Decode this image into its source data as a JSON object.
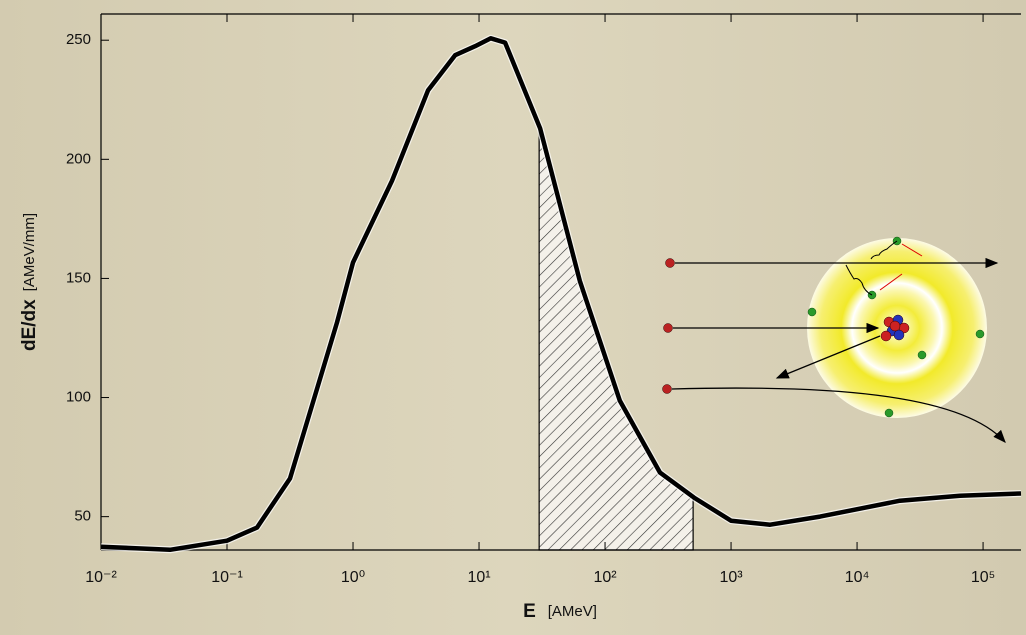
{
  "chart_data": {
    "type": "line",
    "xlabel": "E",
    "xlabel_unit": "[AMeV]",
    "ylabel": "dE/dx",
    "ylabel_unit": "[AMeV/mm]",
    "x_scale": "log",
    "x": [
      0.01,
      0.0353,
      0.1,
      0.173,
      0.316,
      0.746,
      1,
      2.04,
      3.94,
      6.46,
      9.3,
      12.4,
      16.1,
      30.5,
      63,
      131,
      273,
      508,
      1000,
      2040,
      5080,
      21900,
      65600,
      200000
    ],
    "values": [
      37.4,
      36.1,
      39.9,
      45.4,
      66,
      131.5,
      156.7,
      191,
      229,
      243.7,
      247.5,
      250.8,
      249,
      213,
      149,
      98.7,
      68.5,
      58,
      48.3,
      46.6,
      50,
      56.7,
      58.8,
      59.7
    ],
    "color": "#000000",
    "shaded_range": [
      30,
      500
    ],
    "xlim": [
      0.01,
      200000
    ],
    "ylim": [
      36,
      261
    ],
    "xticks": [
      {
        "value": 0.01,
        "label": "10⁻²"
      },
      {
        "value": 0.1,
        "label": "10⁻¹"
      },
      {
        "value": 1,
        "label": "10⁰"
      },
      {
        "value": 10,
        "label": "10¹"
      },
      {
        "value": 100,
        "label": "10²"
      },
      {
        "value": 1000,
        "label": "10³"
      },
      {
        "value": 10000,
        "label": "10⁴"
      },
      {
        "value": 100000,
        "label": "10⁵"
      }
    ],
    "yticks": [
      50,
      100,
      150,
      200,
      250
    ],
    "grid": false
  }
}
